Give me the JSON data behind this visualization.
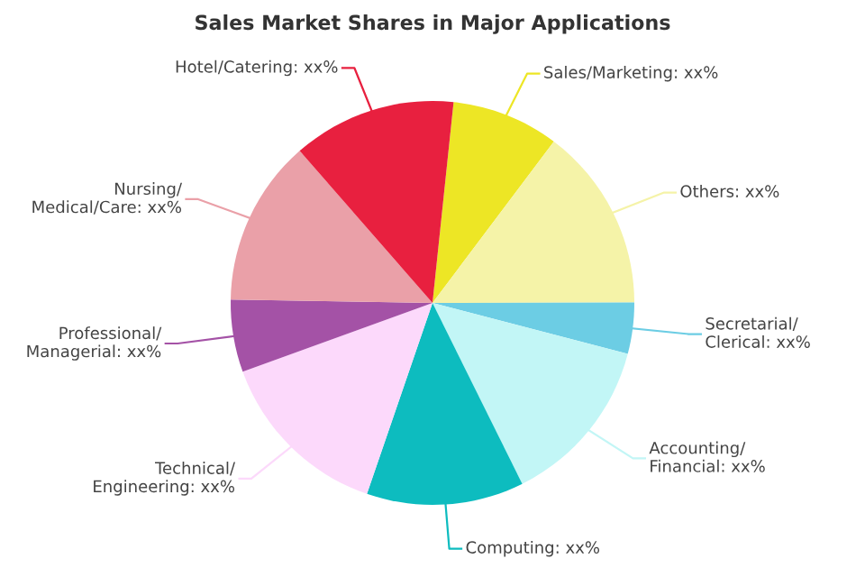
{
  "chart_data": {
    "type": "pie",
    "title": "Sales Market Shares in Major Applications",
    "categories": [
      "Sales/Marketing",
      "Others",
      "Secretarial/Clerical",
      "Accounting/Financial",
      "Computing",
      "Technical/Engineering",
      "Professional/Managerial",
      "Nursing/Medical/Care",
      "Hotel/Catering"
    ],
    "values": [
      8.6,
      14.7,
      4.1,
      13.6,
      12.6,
      14.2,
      5.8,
      13.3,
      13.1
    ],
    "colors": [
      "#ede625",
      "#f5f3a8",
      "#6ccde4",
      "#c2f6f6",
      "#0dbcbf",
      "#fcd9fb",
      "#a452a6",
      "#eaa0a8",
      "#e8203f"
    ],
    "value_labels": [
      "xx%",
      "xx%",
      "xx%",
      "xx%",
      "xx%",
      "xx%",
      "xx%",
      "xx%",
      "xx%"
    ]
  }
}
